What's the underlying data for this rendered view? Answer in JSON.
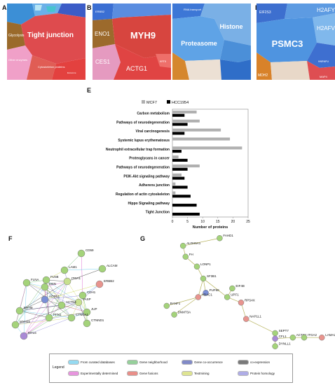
{
  "panels": {
    "a": {
      "letter": "A",
      "big": "Tight junction",
      "labels": [
        "Glycolysis",
        "Other enzymes",
        "Cytoskeleton proteins",
        "Exosome"
      ]
    },
    "b": {
      "letter": "B",
      "big": "MYH9",
      "labels": [
        "ERBB2",
        "ENO1",
        "CES1",
        "ACTG1",
        "KRT8"
      ]
    },
    "c": {
      "letter": "C",
      "big": "Proteasome",
      "labels": [
        "Histone",
        "RNA transport"
      ]
    },
    "d": {
      "letter": "D",
      "big": "PSMC3",
      "labels": [
        "EIF2S3",
        "H2AFY",
        "H2AFV",
        "MDH2",
        "MAP4",
        "HNRNPU"
      ]
    },
    "e": {
      "letter": "E"
    },
    "f": {
      "letter": "F"
    },
    "g": {
      "letter": "G"
    }
  },
  "chart_data": {
    "type": "bar",
    "orientation": "horizontal",
    "categories": [
      "Carbon metabolism",
      "Pathways of neurodegeneration",
      "Viral carcinogenesis",
      "Systemic lupus erythematosus",
      "Neutrophil extracellular trap formation",
      "Proteoglycans in cancer",
      "Pathways of neurodegeneration",
      "PI3K-Akt signaling pathway",
      "Adherens junction",
      "Regulation of actin cytoskeleton",
      "Hippo Signaling pathway",
      "Tight Junction"
    ],
    "series": [
      {
        "name": "MCF7",
        "color": "#b0b0b0",
        "values": [
          8,
          9,
          16,
          19,
          23,
          2,
          9,
          3,
          1,
          1,
          0,
          0
        ]
      },
      {
        "name": "HCC1954",
        "color": "#000000",
        "values": [
          4,
          5,
          4,
          0,
          3,
          5,
          5,
          4,
          5,
          6,
          8,
          9
        ]
      }
    ],
    "xlabel": "Number of proteins",
    "xlim": [
      0,
      25
    ],
    "xticks": [
      0,
      5,
      10,
      15,
      20,
      25
    ],
    "legend_position": "top"
  },
  "network_f": {
    "nodes": [
      "CD59",
      "LAM1",
      "ALCAM",
      "FLNB",
      "ITGA1",
      "FLNA",
      "MSN",
      "ERBB2",
      "CDH1",
      "ACTG1",
      "VASP",
      "JUP",
      "ACTN4",
      "CTNNA1",
      "CTNND1",
      "MYH9",
      "PFN1",
      "MYH10",
      "MYL6"
    ]
  },
  "network_g": {
    "nodes": [
      "FAHD1",
      "ALDH5A1",
      "FH",
      "LONP1",
      "SF3B1",
      "EIF4B",
      "UPF1",
      "RPS4X",
      "BANF1",
      "PUF60",
      "HDAC1",
      "DNMT3A",
      "NAP1L1",
      "SEPT7",
      "CFL1",
      "ACTG1",
      "ITGA2",
      "LAMA2",
      "DYNLL1"
    ]
  },
  "legend": {
    "title": "Legend",
    "items": [
      "From curated databases",
      "Experimentally determined",
      "Gene neighborhood",
      "Gene fusions",
      "Gene co-occurrence",
      "Textmining",
      "co-expression",
      "Protein homology"
    ],
    "colors": [
      "#4fc3e8",
      "#d64fc8",
      "#52b15a",
      "#d9463c",
      "#2e3ea3",
      "#c9d34a",
      "#222222",
      "#7b77d6"
    ]
  }
}
